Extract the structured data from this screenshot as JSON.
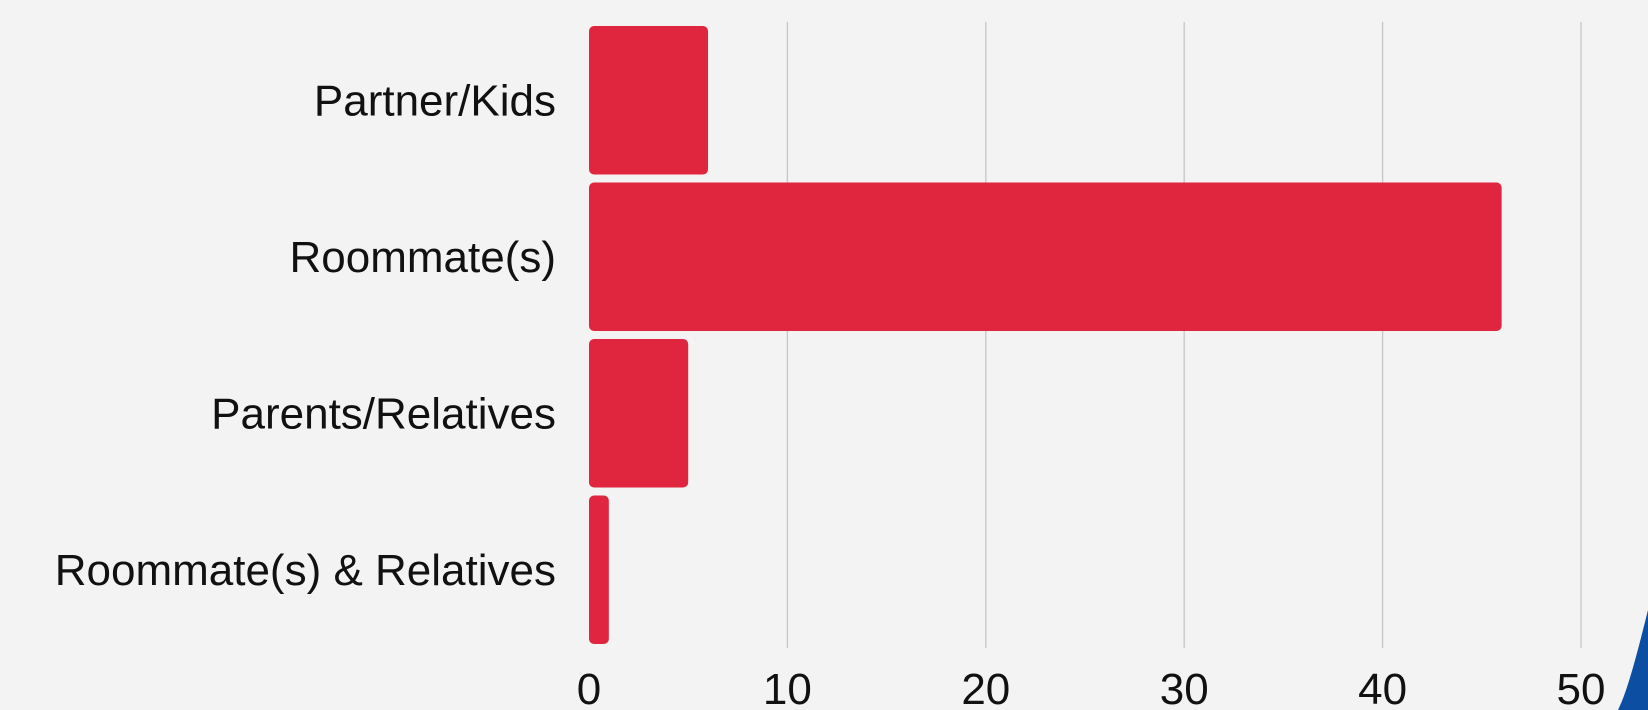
{
  "chart_data": {
    "type": "bar",
    "orientation": "horizontal",
    "categories": [
      "Partner/Kids",
      "Roommate(s)",
      "Parents/Relatives",
      "Roommate(s) & Relatives"
    ],
    "values": [
      6,
      46,
      5,
      1
    ],
    "xlim": [
      0,
      50
    ],
    "x_ticks": [
      "0",
      "10",
      "20",
      "30",
      "40",
      "50"
    ],
    "grid": true,
    "colors": {
      "bar": "#e0263e",
      "background": "#f3f3f3",
      "accent": "#0b4ea2"
    }
  }
}
